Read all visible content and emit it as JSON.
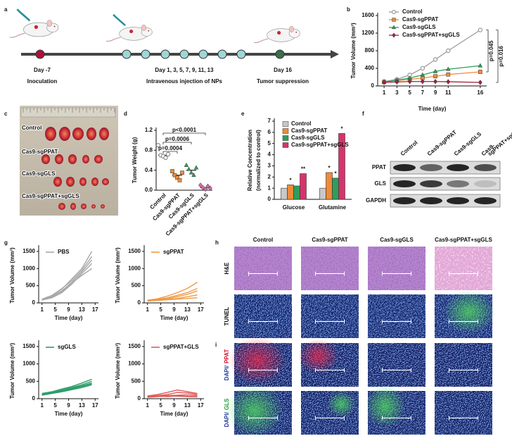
{
  "panel_letters": [
    "a",
    "b",
    "c",
    "d",
    "e",
    "f",
    "g",
    "h",
    "i"
  ],
  "timeline": {
    "steps": [
      {
        "day": "Day -7",
        "label": "Inoculation"
      },
      {
        "day": "Day 1, 3, 5, 7, 9, 11, 13",
        "label": "Intravenous injection of NPs"
      },
      {
        "day": "Day 16",
        "label": "Tumor suppression"
      }
    ]
  },
  "chart_data": [
    {
      "type": "line",
      "xlabel": "Time (day)",
      "ylabel": "Tumor Volume (mm³)",
      "x": [
        1,
        3,
        5,
        7,
        9,
        11,
        16
      ],
      "xlim": [
        0,
        17
      ],
      "xticks": [
        1,
        3,
        5,
        7,
        9,
        11,
        16
      ],
      "ylim": [
        0,
        1600
      ],
      "yticks": [
        0,
        400,
        800,
        1200,
        1600
      ],
      "series": [
        {
          "name": "Control",
          "color": "#9a9a9a",
          "marker": "circle-open",
          "values": [
            100,
            150,
            250,
            400,
            600,
            800,
            1270
          ]
        },
        {
          "name": "Cas9-sgPPAT",
          "color": "#ef8a3a",
          "marker": "square",
          "values": [
            90,
            120,
            150,
            180,
            220,
            260,
            320
          ]
        },
        {
          "name": "Cas9-sgGLS",
          "color": "#2e9e5b",
          "marker": "triangle",
          "values": [
            90,
            130,
            180,
            250,
            330,
            380,
            460
          ]
        },
        {
          "name": "Cas9-sgPPAT+sgGLS",
          "color": "#a0223c",
          "marker": "diamond",
          "values": [
            80,
            90,
            100,
            100,
            100,
            95,
            80
          ]
        }
      ],
      "annotations": [
        "p=0.045",
        "p=0.016"
      ]
    },
    {
      "type": "dot",
      "ylabel": "Tumor Weight (g)",
      "categories": [
        "Control",
        "Cas9-sgPPAT",
        "Cas9-sgGLS",
        "Cas9-sgPPAT+sgGLS"
      ],
      "values": [
        0.7,
        0.3,
        0.4,
        0.05
      ],
      "points": [
        [
          0.9,
          0.7,
          0.68,
          0.65,
          0.72
        ],
        [
          0.38,
          0.3,
          0.25,
          0.2,
          0.35
        ],
        [
          0.5,
          0.42,
          0.35,
          0.3,
          0.45
        ],
        [
          0.1,
          0.05,
          0.02,
          0.08,
          0.04
        ]
      ],
      "colors": [
        "#8a8a8a",
        "#ef8a3a",
        "#2e9e5b",
        "#d66aa8"
      ],
      "markers": [
        "circle-open",
        "square",
        "triangle",
        "diamond"
      ],
      "ylim": [
        0,
        1.2
      ],
      "yticks": [
        {
          "value": 0,
          "label": "0.0"
        },
        0.4,
        0.8,
        1.2
      ],
      "annotations": [
        "p=0.0004",
        "p=0.0006",
        "p<0.0001"
      ]
    },
    {
      "type": "bar",
      "ylabel": [
        "Relative Concentration",
        "(normalized to control)"
      ],
      "categories": [
        "Glucose",
        "Glutamine"
      ],
      "ylim": [
        0,
        7
      ],
      "yticks": [
        0,
        1,
        2,
        3,
        4,
        5,
        6,
        7
      ],
      "series": [
        {
          "name": "Control",
          "color": "#c8c8c8",
          "values": [
            1,
            1
          ],
          "significance": [
            null,
            null
          ]
        },
        {
          "name": "Cas9-sgPPAT",
          "color": "#ef8a3a",
          "values": [
            1.3,
            2.4
          ],
          "significance": [
            "*",
            "*"
          ]
        },
        {
          "name": "Cas9-sgGLS",
          "color": "#2e9e5b",
          "values": [
            1.2,
            1.9
          ],
          "significance": [
            null,
            "*"
          ]
        },
        {
          "name": "Cas9-sgPPAT+sgGLS",
          "color": "#d6336c",
          "values": [
            2.3,
            5.9
          ],
          "significance": [
            "**",
            "*"
          ]
        }
      ]
    },
    {
      "type": "line",
      "legend": "PBS",
      "color": "#a8a8a8",
      "xlabel": "Time (day)",
      "ylabel": "Tumor Volume (mm³)",
      "x": [
        1,
        4,
        7,
        10,
        13,
        16
      ],
      "xlim": [
        0,
        18
      ],
      "xticks": [
        1,
        5,
        9,
        13,
        17
      ],
      "ylim": [
        0,
        1600
      ],
      "yticks": [
        0,
        500,
        1000,
        1500
      ],
      "lines": [
        [
          100,
          200,
          400,
          700,
          1000,
          1500
        ],
        [
          100,
          180,
          350,
          600,
          900,
          1250
        ],
        [
          80,
          150,
          300,
          550,
          850,
          1150
        ],
        [
          90,
          170,
          330,
          580,
          800,
          1000
        ],
        [
          110,
          220,
          420,
          650,
          950,
          1350
        ]
      ]
    },
    {
      "type": "line",
      "legend": "sgPPAT",
      "color": "#ef9a45",
      "xlabel": "Time (day)",
      "ylabel": "Tumor Volume (mm³)",
      "x": [
        1,
        4,
        7,
        10,
        13,
        16
      ],
      "xlim": [
        0,
        18
      ],
      "xticks": [
        1,
        5,
        9,
        13,
        17
      ],
      "ylim": [
        0,
        1600
      ],
      "yticks": [
        0,
        500,
        1000,
        1500
      ],
      "lines": [
        [
          80,
          120,
          200,
          300,
          420,
          600
        ],
        [
          70,
          100,
          150,
          220,
          300,
          420
        ],
        [
          60,
          90,
          120,
          180,
          250,
          350
        ],
        [
          50,
          80,
          100,
          130,
          180,
          230
        ],
        [
          60,
          70,
          90,
          110,
          130,
          150
        ]
      ]
    },
    {
      "type": "line",
      "legend": "sgGLS",
      "color": "#2e9e6b",
      "xlabel": "Time (day)",
      "ylabel": "Tumor Volume (mm³)",
      "x": [
        1,
        4,
        7,
        10,
        13,
        16
      ],
      "xlim": [
        0,
        18
      ],
      "xticks": [
        1,
        5,
        9,
        13,
        17
      ],
      "ylim": [
        0,
        1600
      ],
      "yticks": [
        0,
        500,
        1000,
        1500
      ],
      "lines": [
        [
          150,
          200,
          280,
          350,
          450,
          560
        ],
        [
          130,
          180,
          250,
          320,
          400,
          500
        ],
        [
          120,
          170,
          230,
          300,
          370,
          450
        ],
        [
          100,
          150,
          200,
          260,
          320,
          400
        ],
        [
          110,
          160,
          220,
          280,
          350,
          430
        ]
      ]
    },
    {
      "type": "line",
      "legend": "sgPPAT+GLS",
      "color": "#e05a5a",
      "xlabel": "Time (day)",
      "ylabel": "Tumor Volume (mm³)",
      "x": [
        1,
        4,
        7,
        10,
        13,
        16
      ],
      "xlim": [
        0,
        18
      ],
      "xticks": [
        1,
        5,
        9,
        13,
        17
      ],
      "ylim": [
        0,
        1600
      ],
      "yticks": [
        0,
        500,
        1000,
        1500
      ],
      "lines": [
        [
          80,
          120,
          180,
          250,
          200,
          150
        ],
        [
          60,
          90,
          120,
          180,
          160,
          120
        ],
        [
          50,
          70,
          90,
          100,
          110,
          90
        ],
        [
          40,
          60,
          80,
          70,
          60,
          50
        ],
        [
          50,
          70,
          60,
          80,
          70,
          60
        ]
      ]
    }
  ],
  "photo": {
    "rows": [
      "Control",
      "Cas9-sgPPAT",
      "Cas9-sgGLS",
      "Cas9-sgPPAT+sgGLS"
    ]
  },
  "blot": {
    "columns": [
      [
        "Control"
      ],
      [
        "Cas9-sgPPAT"
      ],
      [
        "Cas9-sgGLS"
      ],
      [
        "Cas9-",
        "sgPPAT+sgGLS"
      ]
    ],
    "rows": [
      "PPAT",
      "GLS",
      "GAPDH"
    ]
  },
  "histology": {
    "columns": [
      "Control",
      "Cas9-sgPPAT",
      "Cas9-sgGLS",
      "Cas9-sgPPAT+sgGLS"
    ],
    "rows": [
      "H&E",
      "TUNEL"
    ],
    "stain_rows": [
      {
        "prefix": "DAPI/",
        "marker": "PPAT"
      },
      {
        "prefix": "DAPI/",
        "marker": "GLS"
      }
    ]
  }
}
